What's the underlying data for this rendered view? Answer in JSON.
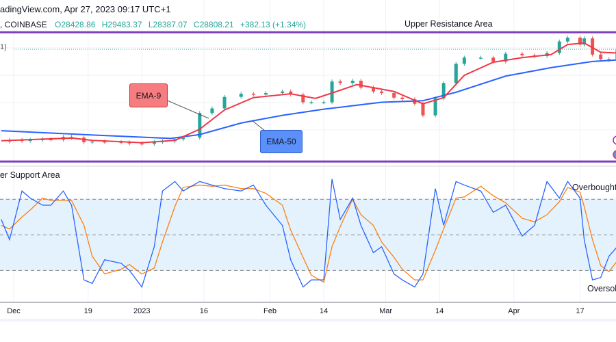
{
  "header": {
    "source": "adingView.com, Apr 27, 2023 09:17 UTC+1",
    "symbol": ", COINBASE",
    "open": "O28428.86",
    "high": "H29483.37",
    "low": "L28387.07",
    "close": "C28808.21",
    "change": "+382.13 (+1.34%)",
    "legend_fragment": "1)"
  },
  "annotations": {
    "upper_resistance": "Upper Resistance Area",
    "lower_support": "er Support Area",
    "ema9": "EMA-9",
    "ema50": "EMA-50",
    "overbought": "Overbought",
    "oversold": "Oversol"
  },
  "colors": {
    "up": "#26a69a",
    "down": "#ef5350",
    "ema9": "#f23645",
    "ema50": "#2962ff",
    "zone_line": "#7e3fbf",
    "stoch_k": "#2962ff",
    "stoch_d": "#ff7f0e",
    "ema9_box": "#f77c80",
    "ema50_box": "#5b8ff9",
    "band": "#e3f2fd"
  },
  "chart_data": [
    {
      "type": "line",
      "title": "",
      "x_ticks": [
        {
          "date": "2022-12-01",
          "label": "Dec"
        },
        {
          "date": "2022-12-19",
          "label": "19"
        },
        {
          "date": "2023-01-01",
          "label": "2023"
        },
        {
          "date": "2023-01-16",
          "label": "16"
        },
        {
          "date": "2023-02-01",
          "label": "Feb"
        },
        {
          "date": "2023-02-14",
          "label": "14"
        },
        {
          "date": "2023-03-01",
          "label": "Mar"
        },
        {
          "date": "2023-03-14",
          "label": "14"
        },
        {
          "date": "2023-04-01",
          "label": "Apr"
        },
        {
          "date": "2023-04-17",
          "label": "17"
        }
      ],
      "resistance_level": 31100,
      "support_level": 14300,
      "price": {
        "x": [
          "2022-11-28",
          "2022-11-30",
          "2022-12-03",
          "2022-12-05",
          "2022-12-08",
          "2022-12-10",
          "2022-12-13",
          "2022-12-15",
          "2022-12-18",
          "2022-12-20",
          "2022-12-23",
          "2022-12-27",
          "2022-12-29",
          "2023-01-01",
          "2023-01-04",
          "2023-01-06",
          "2023-01-09",
          "2023-01-11",
          "2023-01-15",
          "2023-01-18",
          "2023-01-21",
          "2023-01-25",
          "2023-01-28",
          "2023-01-31",
          "2023-02-04",
          "2023-02-06",
          "2023-02-09",
          "2023-02-11",
          "2023-02-14",
          "2023-02-16",
          "2023-02-18",
          "2023-02-21",
          "2023-02-23",
          "2023-02-26",
          "2023-02-28",
          "2023-03-03",
          "2023-03-05",
          "2023-03-08",
          "2023-03-10",
          "2023-03-13",
          "2023-03-15",
          "2023-03-18",
          "2023-03-20",
          "2023-03-24",
          "2023-03-27",
          "2023-03-30",
          "2023-04-03",
          "2023-04-06",
          "2023-04-09",
          "2023-04-12",
          "2023-04-14",
          "2023-04-17",
          "2023-04-18",
          "2023-04-20",
          "2023-04-22",
          "2023-04-24",
          "2023-04-26"
        ],
        "close": [
          16900,
          17100,
          17000,
          17100,
          17200,
          17150,
          17500,
          17400,
          16800,
          16900,
          16850,
          16800,
          16650,
          16600,
          16850,
          16950,
          17200,
          17400,
          20600,
          21200,
          22700,
          23100,
          23000,
          23200,
          23400,
          23000,
          22000,
          22000,
          22000,
          24700,
          24500,
          24800,
          23900,
          23400,
          23200,
          22600,
          22400,
          21800,
          20300,
          22500,
          24500,
          27000,
          27800,
          27800,
          27300,
          28300,
          28100,
          28000,
          28400,
          29900,
          30400,
          29500,
          30300,
          28200,
          27600,
          27500,
          28800
        ]
      },
      "series": [
        {
          "name": "EMA-9",
          "x": [
            "2022-11-28",
            "2022-12-15",
            "2022-12-20",
            "2023-01-01",
            "2023-01-09",
            "2023-01-15",
            "2023-01-21",
            "2023-01-28",
            "2023-02-06",
            "2023-02-12",
            "2023-02-16",
            "2023-02-22",
            "2023-03-03",
            "2023-03-10",
            "2023-03-15",
            "2023-03-20",
            "2023-03-27",
            "2023-04-03",
            "2023-04-10",
            "2023-04-14",
            "2023-04-18",
            "2023-04-22",
            "2023-04-26"
          ],
          "values": [
            17000,
            17350,
            17050,
            16750,
            17050,
            18500,
            21000,
            22600,
            23100,
            22500,
            23200,
            24300,
            23400,
            21800,
            22600,
            25500,
            27200,
            27800,
            28200,
            29500,
            29700,
            28500,
            28400
          ]
        },
        {
          "name": "EMA-50",
          "x": [
            "2022-11-28",
            "2022-12-18",
            "2023-01-08",
            "2023-01-15",
            "2023-01-25",
            "2023-02-04",
            "2023-02-14",
            "2023-02-28",
            "2023-03-10",
            "2023-03-18",
            "2023-03-30",
            "2023-04-10",
            "2023-04-20",
            "2023-04-26"
          ],
          "values": [
            18300,
            17800,
            17300,
            17800,
            19300,
            20300,
            21100,
            22000,
            22200,
            23300,
            25400,
            26500,
            27300,
            27500
          ]
        }
      ]
    },
    {
      "type": "line",
      "title": "",
      "ylim": [
        0,
        100
      ],
      "levels": [
        80,
        50,
        20
      ],
      "x": [
        "2022-11-28",
        "2022-11-30",
        "2022-12-03",
        "2022-12-05",
        "2022-12-08",
        "2022-12-10",
        "2022-12-13",
        "2022-12-15",
        "2022-12-18",
        "2022-12-20",
        "2022-12-23",
        "2022-12-27",
        "2022-12-29",
        "2023-01-01",
        "2023-01-04",
        "2023-01-06",
        "2023-01-09",
        "2023-01-11",
        "2023-01-15",
        "2023-01-18",
        "2023-01-21",
        "2023-01-25",
        "2023-01-28",
        "2023-01-31",
        "2023-02-04",
        "2023-02-06",
        "2023-02-09",
        "2023-02-11",
        "2023-02-14",
        "2023-02-16",
        "2023-02-18",
        "2023-02-21",
        "2023-02-23",
        "2023-02-26",
        "2023-02-28",
        "2023-03-03",
        "2023-03-05",
        "2023-03-08",
        "2023-03-10",
        "2023-03-13",
        "2023-03-15",
        "2023-03-18",
        "2023-03-20",
        "2023-03-24",
        "2023-03-27",
        "2023-03-30",
        "2023-04-03",
        "2023-04-06",
        "2023-04-09",
        "2023-04-12",
        "2023-04-14",
        "2023-04-17",
        "2023-04-18",
        "2023-04-20",
        "2023-04-22",
        "2023-04-24",
        "2023-04-26"
      ],
      "series": [
        {
          "values": [
            63,
            46,
            87,
            81,
            75,
            75,
            87,
            75,
            12,
            9,
            29,
            26,
            20,
            6,
            40,
            87,
            95,
            87,
            95,
            92,
            89,
            87,
            92,
            75,
            58,
            29,
            6,
            12,
            12,
            97,
            63,
            81,
            58,
            35,
            40,
            17,
            12,
            6,
            17,
            89,
            58,
            95,
            92,
            87,
            69,
            75,
            49,
            58,
            95,
            81,
            95,
            81,
            46,
            12,
            14,
            32,
            40
          ]
        },
        {
          "values": [
            58,
            55,
            65,
            71,
            81,
            79,
            79,
            79,
            58,
            32,
            17,
            21,
            25,
            17,
            22,
            44,
            74,
            90,
            92,
            91,
            92,
            89,
            89,
            85,
            75,
            54,
            31,
            16,
            10,
            40,
            57,
            80,
            67,
            58,
            44,
            31,
            21,
            12,
            12,
            37,
            55,
            81,
            82,
            91,
            83,
            77,
            64,
            61,
            67,
            78,
            90,
            86,
            74,
            46,
            24,
            19,
            28
          ]
        }
      ]
    }
  ]
}
